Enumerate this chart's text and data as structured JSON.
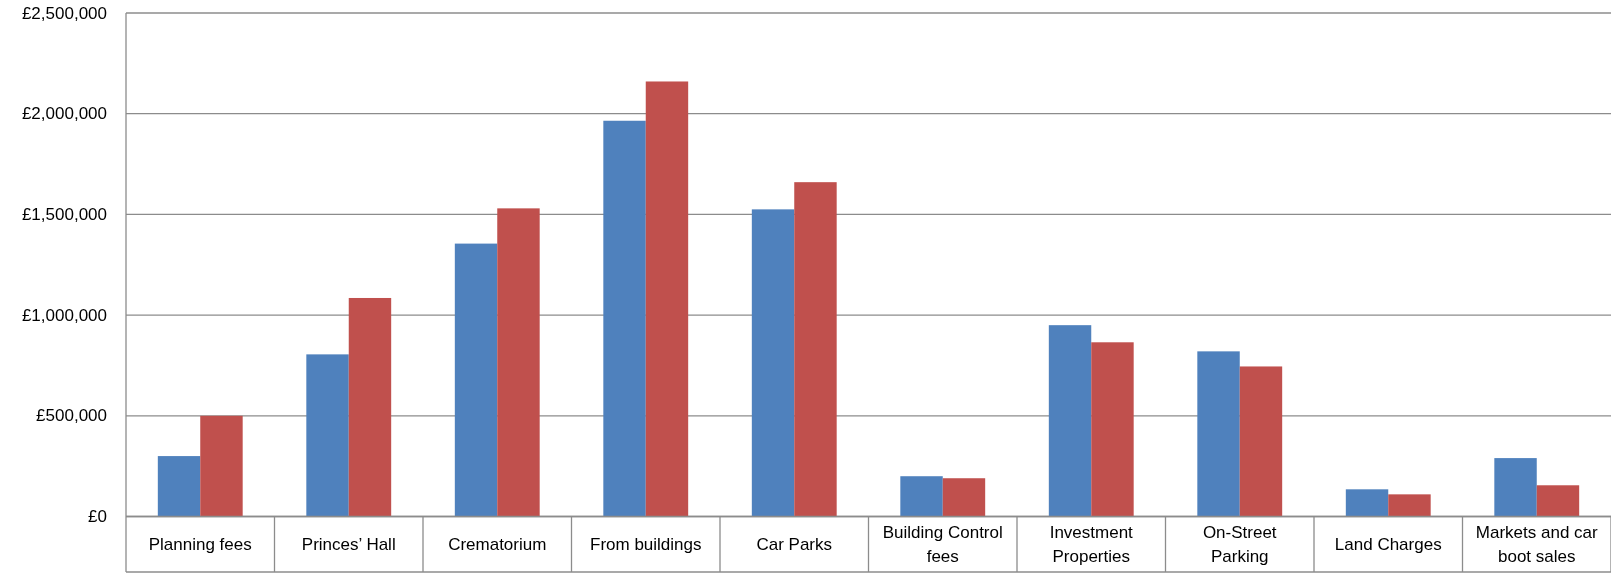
{
  "chart_data": {
    "type": "bar",
    "categories": [
      "Planning fees",
      "Princes’ Hall",
      "Crematorium",
      "From buildings",
      "Car Parks",
      "Building Control fees",
      "Investment Properties",
      "On-Street Parking",
      "Land Charges",
      "Markets and car boot sales"
    ],
    "series": [
      {
        "color": "#4f81bd",
        "values": [
          300000,
          805000,
          1355000,
          1965000,
          1525000,
          200000,
          950000,
          820000,
          135000,
          290000
        ]
      },
      {
        "color": "#c0504d",
        "values": [
          500000,
          1085000,
          1530000,
          2160000,
          1660000,
          190000,
          865000,
          745000,
          110000,
          155000
        ]
      }
    ],
    "ylim": [
      0,
      2500000
    ],
    "yticks": [
      {
        "value": 0,
        "label": "£0"
      },
      {
        "value": 500000,
        "label": "£500,000"
      },
      {
        "value": 1000000,
        "label": "£1,000,000"
      },
      {
        "value": 1500000,
        "label": "£1,500,000"
      },
      {
        "value": 2000000,
        "label": "£2,000,000"
      },
      {
        "value": 2500000,
        "label": "£2,500,000"
      }
    ],
    "grid": "y"
  }
}
